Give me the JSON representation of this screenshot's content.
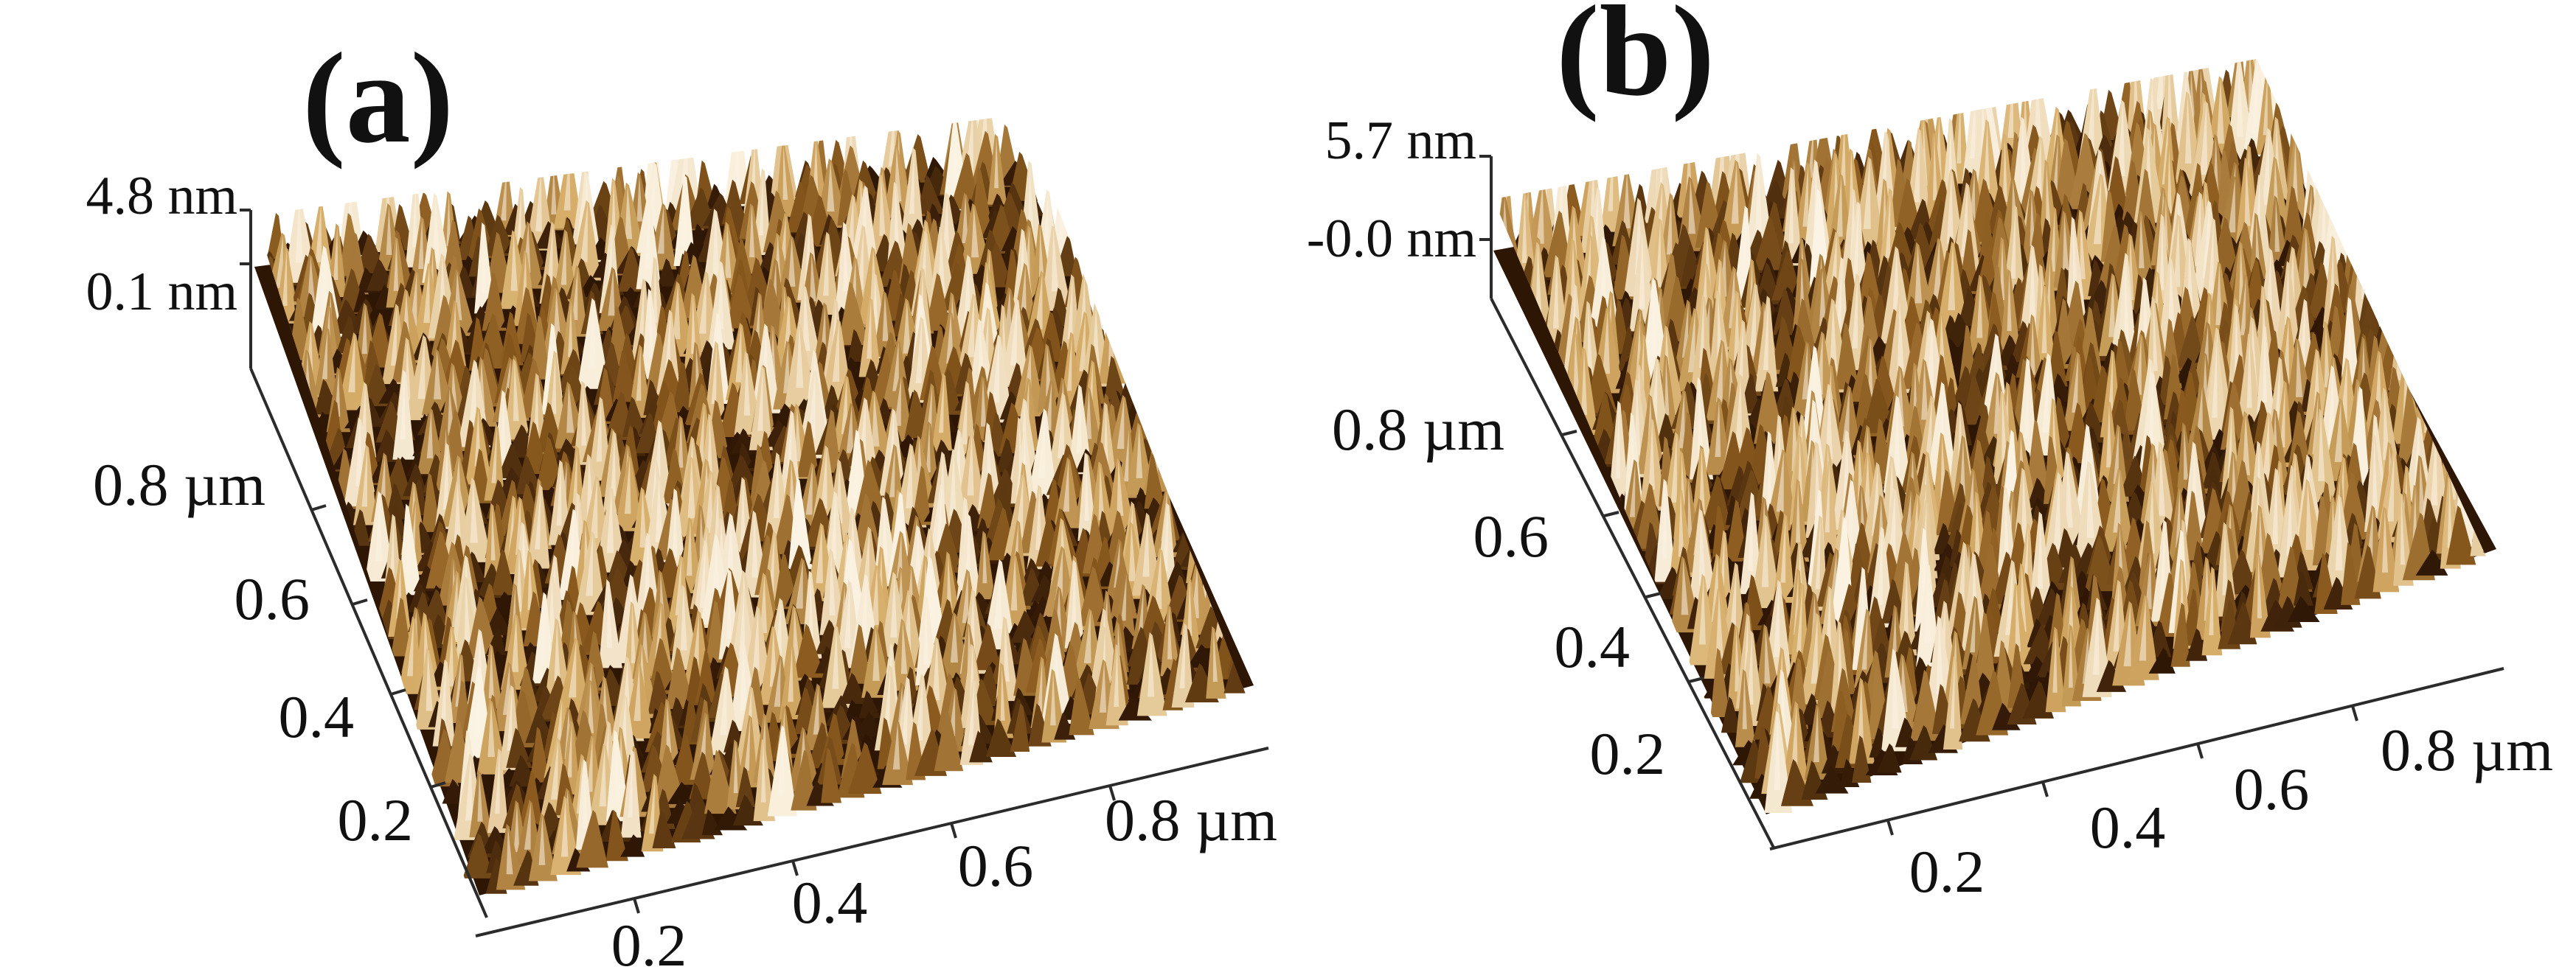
{
  "figure": {
    "type": "afm-3d-topography",
    "colors": {
      "background": "#ffffff",
      "surface_dark": "#2e1605",
      "surface_mid": "#8a5a1e",
      "surface_light": "#d6ad68",
      "surface_highlight": "#fbf3e3",
      "axis": "#2b2b2b",
      "text": "#111111"
    },
    "panels": [
      {
        "id": "a",
        "label": "(a)",
        "z_top": "4.8 nm",
        "z_bottom": "0.1 nm",
        "y_ticks": [
          "0.2",
          "0.4",
          "0.6",
          "0.8 µm"
        ],
        "x_ticks": [
          "0.2",
          "0.4",
          "0.6",
          "0.8 µm"
        ],
        "seed": 7
      },
      {
        "id": "b",
        "label": "(b)",
        "z_top": "5.7 nm",
        "z_bottom": "-0.0 nm",
        "y_ticks": [
          "0.2",
          "0.4",
          "0.6",
          "0.8 µm"
        ],
        "x_ticks": [
          "0.2",
          "0.4",
          "0.6",
          "0.8 µm"
        ],
        "seed": 19
      }
    ]
  }
}
